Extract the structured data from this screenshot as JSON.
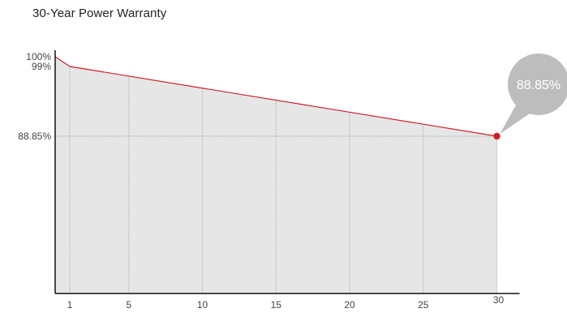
{
  "chart_data": {
    "type": "area",
    "title": "30-Year Power Warranty",
    "x_range": [
      0,
      30
    ],
    "y_range": [
      0,
      100
    ],
    "series": [
      {
        "x": [
          0,
          1,
          30
        ],
        "y": [
          100,
          99,
          88.85
        ]
      }
    ],
    "y_ticks": [
      {
        "value": 100,
        "label": "100%"
      },
      {
        "value": 99,
        "label": "99%"
      },
      {
        "value": 88.85,
        "label": "88.85%"
      }
    ],
    "x_ticks": [
      {
        "value": 1,
        "label": "1"
      },
      {
        "value": 5,
        "label": "5"
      },
      {
        "value": 10,
        "label": "10"
      },
      {
        "value": 15,
        "label": "15"
      },
      {
        "value": 20,
        "label": "20"
      },
      {
        "value": 25,
        "label": "25"
      },
      {
        "value": 30,
        "label": "30"
      }
    ],
    "annotation": {
      "x": 30,
      "y": 88.85,
      "label": "88.85%"
    },
    "grid": true,
    "colors": {
      "line": "#d0202a",
      "fill": "#e6e6e6",
      "grid": "#b8b8b8",
      "callout": "#bdbdbd",
      "marker": "#d0202a"
    }
  }
}
